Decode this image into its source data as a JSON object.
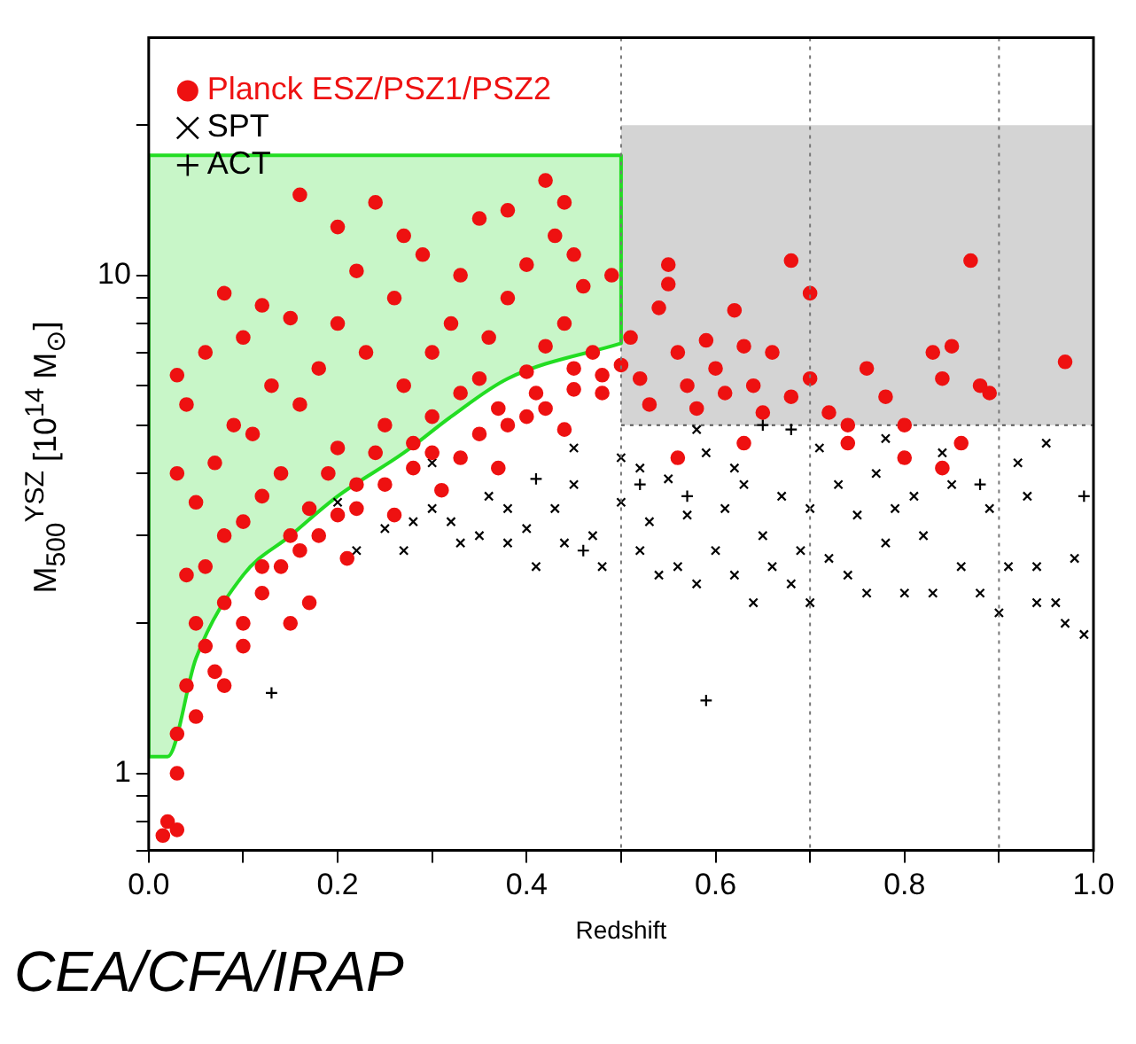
{
  "chart_data": {
    "type": "scatter",
    "xlabel": "Redshift",
    "ylabel": "M$_{500}$$^{YSZ}$  [10$^{14}$ M$_{⊙}$]",
    "annotations": [
      "CEA/CFA/IRAP"
    ],
    "xlim": [
      0,
      1
    ],
    "ylim": [
      0.7,
      30
    ],
    "log": "y",
    "grid": false,
    "legend": "top left",
    "xticks": [
      {
        "value": 0,
        "label": "0.0"
      },
      {
        "value": 0.1,
        "label": null
      },
      0.2,
      {
        "value": 0.3,
        "label": null
      },
      0.4,
      {
        "value": 0.5,
        "label": null
      },
      0.6,
      {
        "value": 0.7,
        "label": null
      },
      0.8,
      {
        "value": 0.9,
        "label": null
      },
      {
        "value": 1,
        "label": "1.0"
      }
    ],
    "yticks": [
      {
        "value": 0.7,
        "label": null
      },
      {
        "value": 0.8,
        "label": null
      },
      {
        "value": 0.9,
        "label": null
      },
      1,
      {
        "value": 2,
        "label": null
      },
      {
        "value": 3,
        "label": null
      },
      {
        "value": 4,
        "label": null
      },
      {
        "value": 5,
        "label": null
      },
      {
        "value": 6,
        "label": null
      },
      {
        "value": 7,
        "label": null
      },
      {
        "value": 8,
        "label": null
      },
      {
        "value": 9,
        "label": null
      },
      10,
      {
        "value": 20,
        "label": null
      }
    ],
    "ref_lines": [
      {
        "axis": "x",
        "value": 0.5,
        "color": "#777777",
        "line_style": "dotted"
      },
      {
        "axis": "x",
        "value": 0.7,
        "color": "#777777",
        "line_style": "dotted"
      },
      {
        "axis": "x",
        "value": 0.9,
        "color": "#777777",
        "line_style": "dotted"
      }
    ],
    "series": [
      {
        "type": "line",
        "color": "#555555",
        "line_style": "dotted",
        "x": [
          0.5,
          1.0
        ],
        "values": [
          5,
          5
        ],
        "upper": [
          20,
          20
        ],
        "lower": [
          5,
          5
        ]
      },
      {
        "type": "line",
        "color": "#22dd22",
        "line_style": "solid",
        "x": [
          0,
          0.02,
          0.05,
          0.1,
          0.15,
          0.2,
          0.27,
          0.32,
          0.38,
          0.5
        ],
        "values": [
          1.08,
          1.08,
          1.7,
          2.5,
          3.0,
          3.6,
          4.4,
          5.2,
          6.2,
          7.3
        ],
        "upper": [
          17.4,
          17.4,
          17.4,
          17.4,
          17.4,
          17.4,
          17.4,
          17.4,
          17.4,
          17.4
        ],
        "lower": [
          1.08,
          1.08,
          1.7,
          2.5,
          3.0,
          3.6,
          4.4,
          5.2,
          6.2,
          7.3
        ]
      },
      {
        "type": "line",
        "color": "#22dd22",
        "line_style": "solid",
        "marker": "none",
        "x": [
          0,
          0,
          0.5,
          0.5
        ],
        "values": [
          1.08,
          17.4,
          17.4,
          7.3
        ]
      },
      {
        "name": "Planck ESZ/PSZ1/PSZ2",
        "color": "#ee1111",
        "marker": "circle",
        "x": [
          0.02,
          0.015,
          0.03,
          0.03,
          0.03,
          0.04,
          0.05,
          0.06,
          0.07,
          0.05,
          0.04,
          0.06,
          0.08,
          0.1,
          0.08,
          0.05,
          0.03,
          0.07,
          0.1,
          0.12,
          0.12,
          0.15,
          0.09,
          0.04,
          0.11,
          0.14,
          0.17,
          0.13,
          0.06,
          0.03,
          0.16,
          0.19,
          0.2,
          0.18,
          0.22,
          0.1,
          0.2,
          0.15,
          0.25,
          0.24,
          0.27,
          0.23,
          0.3,
          0.28,
          0.3,
          0.33,
          0.32,
          0.35,
          0.37,
          0.36,
          0.4,
          0.41,
          0.38,
          0.42,
          0.45,
          0.44,
          0.47,
          0.48,
          0.46,
          0.26,
          0.33,
          0.4,
          0.29,
          0.12,
          0.08,
          0.2,
          0.22,
          0.27,
          0.35,
          0.43,
          0.45,
          0.49,
          0.44,
          0.16,
          0.38,
          0.42,
          0.24,
          0.12,
          0.1,
          0.14,
          0.16,
          0.18,
          0.2,
          0.22,
          0.25,
          0.28,
          0.3,
          0.33,
          0.35,
          0.38,
          0.4,
          0.42,
          0.45,
          0.48,
          0.5,
          0.21,
          0.26,
          0.31,
          0.37,
          0.44,
          0.08,
          0.15,
          0.17,
          0.51,
          0.52,
          0.53,
          0.54,
          0.55,
          0.55,
          0.56,
          0.57,
          0.58,
          0.59,
          0.6,
          0.61,
          0.62,
          0.63,
          0.64,
          0.65,
          0.66,
          0.68,
          0.68,
          0.7,
          0.7,
          0.72,
          0.74,
          0.76,
          0.78,
          0.8,
          0.83,
          0.84,
          0.85,
          0.86,
          0.88,
          0.89,
          0.87,
          0.97,
          0.56,
          0.63,
          0.74,
          0.8,
          0.84
        ],
        "values": [
          0.8,
          0.75,
          0.77,
          1.0,
          1.2,
          1.5,
          1.3,
          1.8,
          1.6,
          2.0,
          2.5,
          2.6,
          2.2,
          2.0,
          3.0,
          3.5,
          4.0,
          4.2,
          3.2,
          2.6,
          3.6,
          3.0,
          5.0,
          5.5,
          4.8,
          4.0,
          3.4,
          6.0,
          7.0,
          6.3,
          5.5,
          4.0,
          4.5,
          6.5,
          3.8,
          7.5,
          8.0,
          8.2,
          5.0,
          4.4,
          6.0,
          7.0,
          5.2,
          4.6,
          7.0,
          5.8,
          8.0,
          6.2,
          5.4,
          7.5,
          6.4,
          5.8,
          9.0,
          7.2,
          6.5,
          8.0,
          7.0,
          5.8,
          9.5,
          9.0,
          10.0,
          10.5,
          11.0,
          8.7,
          9.2,
          12.5,
          10.2,
          12.0,
          13.0,
          12.0,
          11.0,
          10.0,
          14.0,
          14.5,
          13.5,
          15.5,
          14.0,
          2.3,
          1.8,
          2.6,
          2.8,
          3.0,
          3.3,
          3.4,
          3.8,
          4.1,
          4.4,
          4.3,
          4.8,
          5.0,
          5.2,
          5.4,
          5.9,
          6.3,
          6.6,
          2.7,
          3.3,
          3.7,
          4.1,
          4.9,
          1.5,
          2.0,
          2.2,
          7.5,
          6.2,
          5.5,
          8.6,
          10.5,
          9.6,
          7.0,
          6.0,
          5.4,
          7.4,
          6.5,
          5.8,
          8.5,
          7.2,
          6.0,
          5.3,
          7.0,
          10.7,
          5.7,
          9.2,
          6.2,
          5.3,
          5.0,
          6.5,
          5.7,
          5.0,
          7.0,
          6.2,
          7.2,
          4.6,
          6.0,
          5.8,
          10.7,
          6.7,
          4.3,
          4.6,
          4.6,
          4.3,
          4.1
        ]
      },
      {
        "name": "SPT",
        "color": "#000000",
        "marker": "cross",
        "x": [
          0.2,
          0.22,
          0.25,
          0.27,
          0.28,
          0.3,
          0.32,
          0.33,
          0.35,
          0.36,
          0.38,
          0.38,
          0.4,
          0.41,
          0.43,
          0.44,
          0.45,
          0.47,
          0.48,
          0.5,
          0.5,
          0.52,
          0.52,
          0.53,
          0.54,
          0.55,
          0.56,
          0.57,
          0.58,
          0.59,
          0.6,
          0.61,
          0.62,
          0.63,
          0.64,
          0.65,
          0.66,
          0.67,
          0.68,
          0.69,
          0.7,
          0.7,
          0.71,
          0.72,
          0.73,
          0.74,
          0.75,
          0.76,
          0.77,
          0.78,
          0.79,
          0.8,
          0.81,
          0.82,
          0.83,
          0.85,
          0.86,
          0.88,
          0.89,
          0.9,
          0.91,
          0.93,
          0.94,
          0.95,
          0.96,
          0.97,
          0.98,
          0.99,
          0.94,
          0.92,
          0.58,
          0.78,
          0.45,
          0.3,
          0.62,
          0.84
        ],
        "values": [
          3.5,
          2.8,
          3.1,
          2.8,
          3.2,
          3.4,
          3.2,
          2.9,
          3.0,
          3.6,
          2.9,
          3.4,
          3.1,
          2.6,
          3.4,
          2.9,
          3.8,
          3.0,
          2.6,
          3.5,
          4.3,
          4.1,
          2.8,
          3.2,
          2.5,
          3.9,
          2.6,
          3.3,
          2.4,
          4.4,
          2.8,
          3.4,
          2.5,
          3.8,
          2.2,
          3.0,
          2.6,
          3.6,
          2.4,
          2.8,
          3.4,
          2.2,
          4.5,
          2.7,
          3.8,
          2.5,
          3.3,
          2.3,
          4.0,
          2.9,
          3.4,
          2.3,
          3.6,
          3.0,
          2.3,
          3.8,
          2.6,
          2.3,
          3.4,
          2.1,
          2.6,
          3.6,
          2.6,
          4.6,
          2.2,
          2.0,
          2.7,
          1.9,
          2.2,
          4.2,
          4.9,
          4.7,
          4.5,
          4.2,
          4.1,
          4.4
        ]
      },
      {
        "name": "ACT",
        "color": "#000000",
        "marker": "plus",
        "x": [
          0.59,
          0.13,
          0.68,
          0.65,
          0.57,
          0.41,
          0.88,
          0.99,
          0.52,
          0.46
        ],
        "values": [
          1.4,
          1.45,
          4.9,
          5.0,
          3.6,
          3.9,
          3.8,
          3.6,
          3.8,
          2.8
        ]
      }
    ]
  }
}
